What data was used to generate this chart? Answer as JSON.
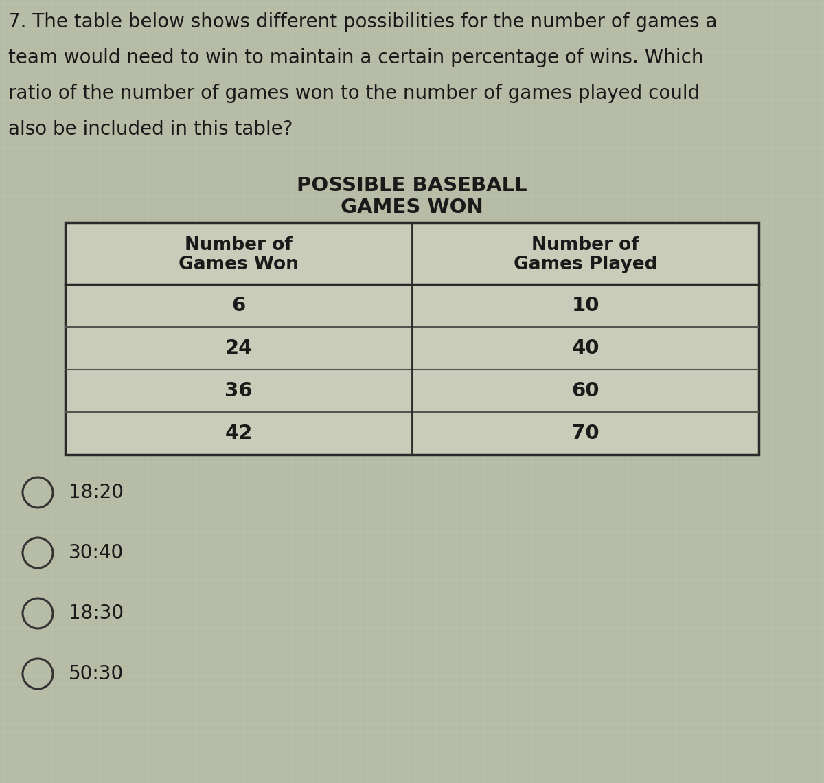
{
  "question_number": "7.",
  "question_text_lines": [
    "7. The table below shows different possibilities for the number of games a",
    "team would need to win to maintain a certain percentage of wins. Which",
    "ratio of the number of games won to the number of games played could",
    "also be included in this table?"
  ],
  "table_title_line1": "POSSIBLE BASEBALL",
  "table_title_line2": "GAMES WON",
  "col1_header_line1": "Number of",
  "col1_header_line2": "Games Won",
  "col2_header_line1": "Number of",
  "col2_header_line2": "Games Played",
  "table_data": [
    [
      "6",
      "10"
    ],
    [
      "24",
      "40"
    ],
    [
      "36",
      "60"
    ],
    [
      "42",
      "70"
    ]
  ],
  "options": [
    "18:20",
    "30:40",
    "18:30",
    "50:30"
  ],
  "bg_color": "#b8bda8",
  "table_border_color": "#2a2a2a",
  "table_row_color": "#c8ccb8",
  "text_color": "#1a1a1a",
  "question_fontsize": 20,
  "option_fontsize": 20,
  "table_title_fontsize": 21,
  "header_fontsize": 19,
  "data_fontsize": 21
}
